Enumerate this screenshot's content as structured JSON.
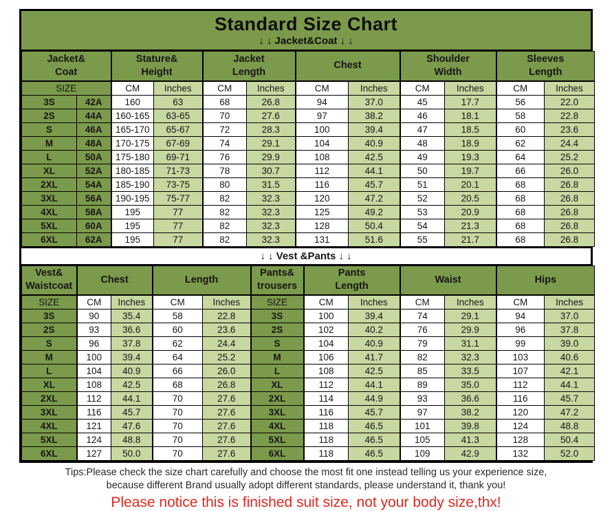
{
  "title": "Standard Size Chart",
  "colors": {
    "header_green": "#7b9a4b",
    "light_green": "#c7d8a1",
    "border_black": "#000000",
    "notice_red": "#e0281e"
  },
  "jacket_section": {
    "banner": "↓ ↓  Jacket&Coat ↓ ↓",
    "group_headers": [
      {
        "label": "Jacket&\nCoat",
        "span": 2
      },
      {
        "label": "Stature&\nHeight",
        "span": 2
      },
      {
        "label": "Jacket\nLength",
        "span": 2
      },
      {
        "label": "Chest",
        "span": 2
      },
      {
        "label": "Shoulder\nWidth",
        "span": 2
      },
      {
        "label": "Sleeves\nLength",
        "span": 2
      }
    ],
    "unit_row": [
      {
        "label": "SIZE",
        "span": 2,
        "type": "size"
      },
      {
        "label": "CM",
        "span": 1,
        "type": "cm"
      },
      {
        "label": "Inches",
        "span": 1,
        "type": "in"
      },
      {
        "label": "CM",
        "span": 1,
        "type": "cm"
      },
      {
        "label": "Inches",
        "span": 1,
        "type": "in"
      },
      {
        "label": "CM",
        "span": 1,
        "type": "cm"
      },
      {
        "label": "Inches",
        "span": 1,
        "type": "in"
      },
      {
        "label": "CM",
        "span": 1,
        "type": "cm"
      },
      {
        "label": "Inches",
        "span": 1,
        "type": "in"
      },
      {
        "label": "CM",
        "span": 1,
        "type": "cm"
      },
      {
        "label": "Inches",
        "span": 1,
        "type": "in"
      }
    ],
    "cell_types": [
      "size",
      "size",
      "cm",
      "in",
      "cm",
      "in",
      "cm",
      "in",
      "cm",
      "in",
      "cm",
      "in"
    ],
    "rows": [
      [
        "3S",
        "42A",
        "160",
        "63",
        "68",
        "26.8",
        "94",
        "37.0",
        "45",
        "17.7",
        "56",
        "22.0"
      ],
      [
        "2S",
        "44A",
        "160-165",
        "63-65",
        "70",
        "27.6",
        "97",
        "38.2",
        "46",
        "18.1",
        "58",
        "22.8"
      ],
      [
        "S",
        "46A",
        "165-170",
        "65-67",
        "72",
        "28.3",
        "100",
        "39.4",
        "47",
        "18.5",
        "60",
        "23.6"
      ],
      [
        "M",
        "48A",
        "170-175",
        "67-69",
        "74",
        "29.1",
        "104",
        "40.9",
        "48",
        "18.9",
        "62",
        "24.4"
      ],
      [
        "L",
        "50A",
        "175-180",
        "69-71",
        "76",
        "29.9",
        "108",
        "42.5",
        "49",
        "19.3",
        "64",
        "25.2"
      ],
      [
        "XL",
        "52A",
        "180-185",
        "71-73",
        "78",
        "30.7",
        "112",
        "44.1",
        "50",
        "19.7",
        "66",
        "26.0"
      ],
      [
        "2XL",
        "54A",
        "185-190",
        "73-75",
        "80",
        "31.5",
        "116",
        "45.7",
        "51",
        "20.1",
        "68",
        "26.8"
      ],
      [
        "3XL",
        "56A",
        "190-195",
        "75-77",
        "82",
        "32.3",
        "120",
        "47.2",
        "52",
        "20.5",
        "68",
        "26.8"
      ],
      [
        "4XL",
        "58A",
        "195",
        "77",
        "82",
        "32.3",
        "125",
        "49.2",
        "53",
        "20.9",
        "68",
        "26.8"
      ],
      [
        "5XL",
        "60A",
        "195",
        "77",
        "82",
        "32.3",
        "128",
        "50.4",
        "54",
        "21.3",
        "68",
        "26.8"
      ],
      [
        "6XL",
        "62A",
        "195",
        "77",
        "82",
        "32.3",
        "131",
        "51.6",
        "55",
        "21.7",
        "68",
        "26.8"
      ]
    ]
  },
  "vest_section": {
    "banner": "↓ ↓  Vest &Pants ↓ ↓",
    "group_headers": [
      {
        "label": "Vest&\nWaistcoat",
        "span": 1
      },
      {
        "label": "Chest",
        "span": 2
      },
      {
        "label": "Length",
        "span": 2
      },
      {
        "label": "Pants&\ntrousers",
        "span": 1
      },
      {
        "label": "Pants\nLength",
        "span": 2
      },
      {
        "label": "Waist",
        "span": 2
      },
      {
        "label": "Hips",
        "span": 2
      }
    ],
    "unit_row": [
      {
        "label": "SIZE",
        "span": 1,
        "type": "size"
      },
      {
        "label": "CM",
        "span": 1,
        "type": "cm"
      },
      {
        "label": "Inches",
        "span": 1,
        "type": "in"
      },
      {
        "label": "CM",
        "span": 1,
        "type": "cm"
      },
      {
        "label": "Inches",
        "span": 1,
        "type": "in"
      },
      {
        "label": "SIZE",
        "span": 1,
        "type": "size"
      },
      {
        "label": "CM",
        "span": 1,
        "type": "cm"
      },
      {
        "label": "Inches",
        "span": 1,
        "type": "in"
      },
      {
        "label": "CM",
        "span": 1,
        "type": "cm"
      },
      {
        "label": "Inches",
        "span": 1,
        "type": "in"
      },
      {
        "label": "CM",
        "span": 1,
        "type": "cm"
      },
      {
        "label": "Inches",
        "span": 1,
        "type": "in"
      }
    ],
    "cell_types": [
      "size",
      "cm",
      "in",
      "cm",
      "in",
      "size",
      "cm",
      "in",
      "cm",
      "in",
      "cm",
      "in"
    ],
    "rows": [
      [
        "3S",
        "90",
        "35.4",
        "58",
        "22.8",
        "3S",
        "100",
        "39.4",
        "74",
        "29.1",
        "94",
        "37.0"
      ],
      [
        "2S",
        "93",
        "36.6",
        "60",
        "23.6",
        "2S",
        "102",
        "40.2",
        "76",
        "29.9",
        "96",
        "37.8"
      ],
      [
        "S",
        "96",
        "37.8",
        "62",
        "24.4",
        "S",
        "104",
        "40.9",
        "79",
        "31.1",
        "99",
        "39.0"
      ],
      [
        "M",
        "100",
        "39.4",
        "64",
        "25.2",
        "M",
        "106",
        "41.7",
        "82",
        "32.3",
        "103",
        "40.6"
      ],
      [
        "L",
        "104",
        "40.9",
        "66",
        "26.0",
        "L",
        "108",
        "42.5",
        "85",
        "33.5",
        "107",
        "42.1"
      ],
      [
        "XL",
        "108",
        "42.5",
        "68",
        "26.8",
        "XL",
        "112",
        "44.1",
        "89",
        "35.0",
        "112",
        "44.1"
      ],
      [
        "2XL",
        "112",
        "44.1",
        "70",
        "27.6",
        "2XL",
        "114",
        "44.9",
        "93",
        "36.6",
        "116",
        "45.7"
      ],
      [
        "3XL",
        "116",
        "45.7",
        "70",
        "27.6",
        "3XL",
        "116",
        "45.7",
        "97",
        "38.2",
        "120",
        "47.2"
      ],
      [
        "4XL",
        "121",
        "47.6",
        "70",
        "27.6",
        "4XL",
        "118",
        "46.5",
        "101",
        "39.8",
        "124",
        "48.8"
      ],
      [
        "5XL",
        "124",
        "48.8",
        "70",
        "27.6",
        "5XL",
        "118",
        "46.5",
        "105",
        "41.3",
        "128",
        "50.4"
      ],
      [
        "6XL",
        "127",
        "50.0",
        "70",
        "27.6",
        "6XL",
        "118",
        "46.5",
        "109",
        "42.9",
        "132",
        "52.0"
      ]
    ]
  },
  "tips": {
    "line1": "Tips:Please check the size chart carefully and choose the most fit one instead telling us your experience size,",
    "line2": "because different Brand usually adopt different standards, please understand it, thank you!",
    "notice": "Please notice this is finished suit size, not your body size,thx!"
  }
}
